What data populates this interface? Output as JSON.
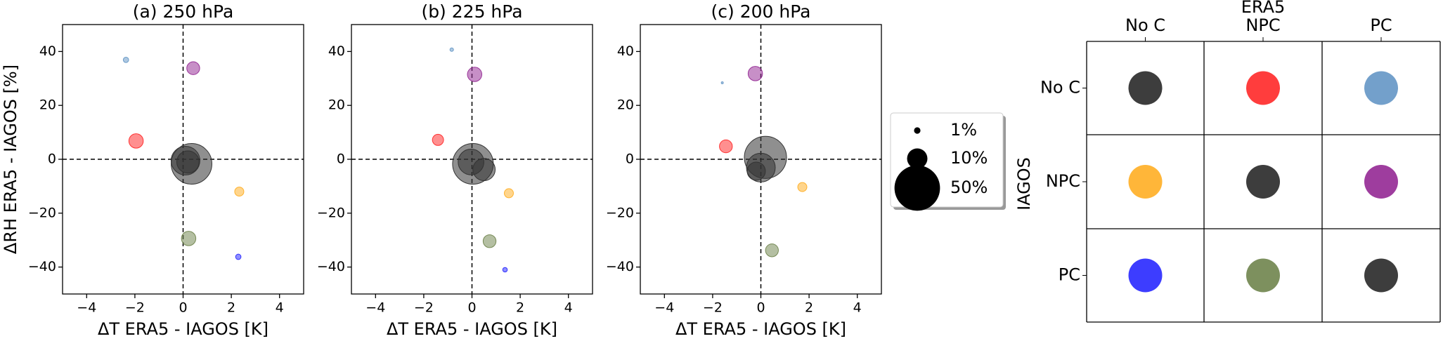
{
  "chart_data": [
    {
      "type": "scatter",
      "title": "(a) 250 hPa",
      "xlabel": "ΔT ERA5 - IAGOS [K]",
      "ylabel": "ΔRH ERA5 - IAGOS [%]",
      "xlim": [
        -5,
        5
      ],
      "ylim": [
        -50,
        50
      ],
      "xticks": [
        {
          "value": -4,
          "label": "−4"
        },
        {
          "value": -2,
          "label": "−2"
        },
        0,
        2,
        4
      ],
      "yticks": [
        {
          "value": -40,
          "label": "−40"
        },
        {
          "value": -20,
          "label": "−20"
        },
        0,
        20,
        40
      ],
      "points": [
        {
          "x": 0.35,
          "y": -1.7,
          "size": 40,
          "color": "#333333"
        },
        {
          "x": 0.1,
          "y": -0.5,
          "size": 20,
          "color": "#333333"
        },
        {
          "x": 0.2,
          "y": -1,
          "size": 12,
          "color": "#333333"
        },
        {
          "x": -2.37,
          "y": 36.9,
          "size": 0.7,
          "color": "#6b9bc8"
        },
        {
          "x": 0.42,
          "y": 33.8,
          "size": 4,
          "color": "#993399"
        },
        {
          "x": -1.95,
          "y": 6.8,
          "size": 5,
          "color": "#ff3333"
        },
        {
          "x": 2.33,
          "y": -12,
          "size": 2,
          "color": "#ffb22e"
        },
        {
          "x": 0.23,
          "y": -29.4,
          "size": 5,
          "color": "#768a55"
        },
        {
          "x": 2.29,
          "y": -36.2,
          "size": 0.7,
          "color": "#3333ff"
        }
      ]
    },
    {
      "type": "scatter",
      "title": "(b) 225 hPa",
      "xlabel": "ΔT ERA5 - IAGOS [K]",
      "xlim": [
        -5,
        5
      ],
      "ylim": [
        -50,
        50
      ],
      "xticks": [
        {
          "value": -4,
          "label": "−4"
        },
        {
          "value": -2,
          "label": "−2"
        },
        0,
        2,
        4
      ],
      "yticks": [
        {
          "value": -40,
          "label": "−40"
        },
        {
          "value": -20,
          "label": "−20"
        },
        0,
        20,
        40
      ],
      "points": [
        {
          "x": 0.04,
          "y": -1.7,
          "size": 40,
          "color": "#333333"
        },
        {
          "x": 0.5,
          "y": -3.8,
          "size": 12,
          "color": "#333333"
        },
        {
          "x": -0.04,
          "y": -1,
          "size": 16,
          "color": "#333333"
        },
        {
          "x": -0.84,
          "y": 40.7,
          "size": 0.3,
          "color": "#6b9bc8"
        },
        {
          "x": 0.11,
          "y": 31.5,
          "size": 5,
          "color": "#993399"
        },
        {
          "x": -1.41,
          "y": 7.2,
          "size": 3,
          "color": "#ff3333"
        },
        {
          "x": 1.53,
          "y": -12.6,
          "size": 2,
          "color": "#ffb22e"
        },
        {
          "x": 0.73,
          "y": -30.4,
          "size": 4,
          "color": "#768a55"
        },
        {
          "x": 1.37,
          "y": -41,
          "size": 0.5,
          "color": "#3333ff"
        }
      ]
    },
    {
      "type": "scatter",
      "title": "(c) 200 hPa",
      "xlabel": "ΔT ERA5 - IAGOS [K]",
      "xlim": [
        -5,
        5
      ],
      "ylim": [
        -50,
        50
      ],
      "xticks": [
        {
          "value": -4,
          "label": "−4"
        },
        {
          "value": -2,
          "label": "−2"
        },
        0,
        2,
        4
      ],
      "yticks": [
        {
          "value": -40,
          "label": "−40"
        },
        {
          "value": -20,
          "label": "−20"
        },
        0,
        20,
        40
      ],
      "points": [
        {
          "x": 0.19,
          "y": 0.7,
          "size": 43,
          "color": "#333333"
        },
        {
          "x": 0,
          "y": -3.1,
          "size": 20,
          "color": "#333333"
        },
        {
          "x": -0.19,
          "y": -4.4,
          "size": 8,
          "color": "#333333"
        },
        {
          "x": -1.6,
          "y": 28.4,
          "size": 0.1,
          "color": "#6b9bc8"
        },
        {
          "x": -0.23,
          "y": 31.8,
          "size": 5,
          "color": "#993399"
        },
        {
          "x": -1.45,
          "y": 4.8,
          "size": 4,
          "color": "#ff3333"
        },
        {
          "x": 1.72,
          "y": -10.3,
          "size": 2,
          "color": "#ffb22e"
        },
        {
          "x": 0.46,
          "y": -33.8,
          "size": 4,
          "color": "#768a55"
        }
      ]
    }
  ],
  "size_legend": {
    "values": [
      1,
      10,
      50
    ],
    "value_labels": [
      "1%",
      "10%",
      "50%"
    ]
  },
  "matrix": {
    "column_title": "ERA5",
    "row_title": "IAGOS",
    "columns": [
      "No C",
      "NPC",
      "PC"
    ],
    "rows": [
      "No C",
      "NPC",
      "PC"
    ],
    "colors": [
      [
        "#333333",
        "#ff3333",
        "#6b9bc8"
      ],
      [
        "#ffb22e",
        "#333333",
        "#993399"
      ],
      [
        "#3333ff",
        "#768a55",
        "#333333"
      ]
    ]
  }
}
